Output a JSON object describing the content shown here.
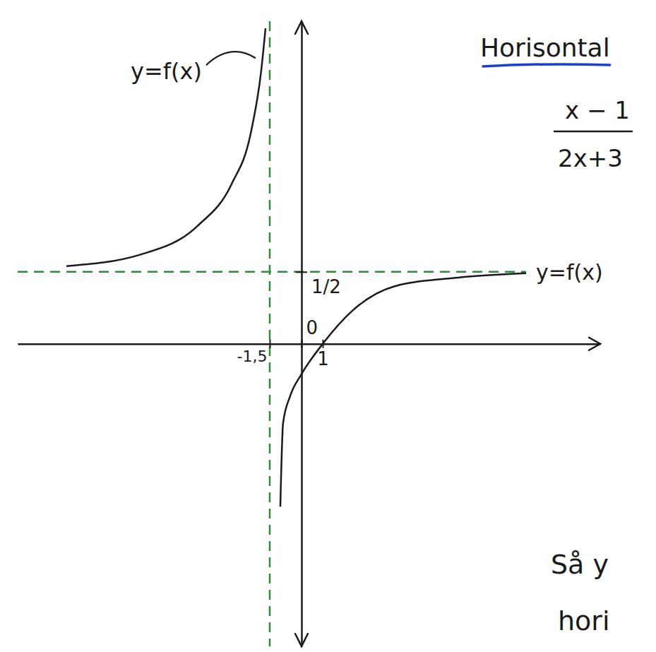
{
  "chart_data": {
    "type": "line",
    "x": [
      -11.1,
      -7.6,
      -4.9,
      -3.3,
      -2.4,
      -1.9,
      -1.7,
      -1.5,
      -1.0,
      -0.87,
      -0.53,
      0,
      1,
      2.4,
      4.4,
      7.4,
      10.6
    ],
    "series": [
      {
        "color": "#1a1a1a",
        "values": [
          0.54,
          0.62,
          0.82,
          1.11,
          1.46,
          1.9,
          2.19,
          null,
          -1.13,
          -0.55,
          -0.36,
          -0.21,
          0,
          0.23,
          0.4,
          0.46,
          0.49
        ]
      }
    ],
    "xlim": [
      -13.4,
      14.1
    ],
    "ylim": [
      -2.1,
      2.24
    ],
    "xticks": [
      {
        "value": -1.5,
        "label": "-1,5"
      },
      0,
      1
    ],
    "yticks": [
      {
        "value": 0.5,
        "label": "1/2"
      }
    ],
    "asymptotes": {
      "x": -1.5,
      "y": 0.5,
      "color": "#2e8b3a",
      "line_style": "dashed"
    },
    "annotations": [
      "y=f(x)",
      "y=f(x)"
    ],
    "notes": {
      "title": "Horisontal",
      "fraction": [
        "x − 1",
        "2x+3"
      ],
      "lines": [
        "Så y",
        "hori"
      ]
    },
    "grid": false
  }
}
